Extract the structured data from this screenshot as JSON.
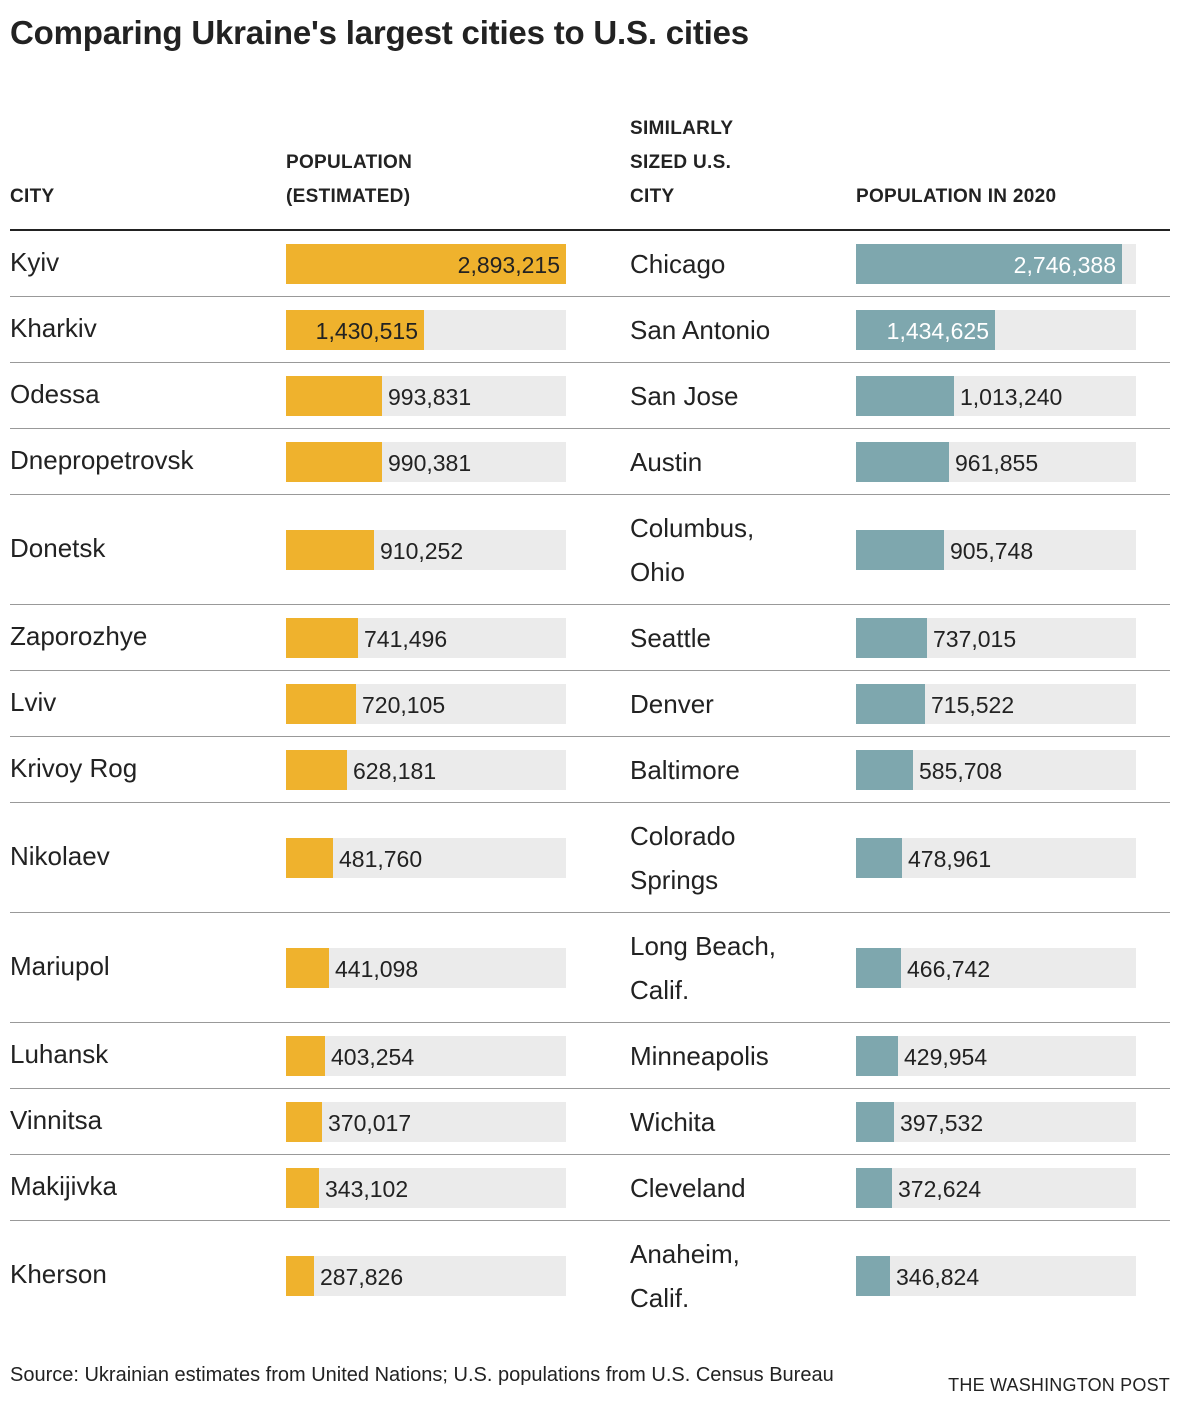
{
  "title": "Comparing Ukraine's largest cities to U.S. cities",
  "headers": {
    "city": "CITY",
    "population_estimated": [
      "POPULATION",
      "(ESTIMATED)"
    ],
    "similar_city": [
      "SIMILARLY",
      "SIZED U.S.",
      "CITY"
    ],
    "population_2020": "POPULATION IN 2020"
  },
  "colors": {
    "ukraine_bar": "#efb22d",
    "us_bar": "#7ea7ae",
    "track": "#ebebeb"
  },
  "chart_data": {
    "type": "table",
    "title": "Comparing Ukraine's largest cities to U.S. cities",
    "columns": [
      "CITY",
      "POPULATION (ESTIMATED)",
      "SIMILARLY SIZED U.S. CITY",
      "POPULATION IN 2020"
    ],
    "scale_max": 2893215,
    "rows": [
      {
        "city": "Kyiv",
        "population": 2893215,
        "population_label": "2,893,215",
        "us_city": [
          "Chicago"
        ],
        "us_population": 2746388,
        "us_population_label": "2,746,388"
      },
      {
        "city": "Kharkiv",
        "population": 1430515,
        "population_label": "1,430,515",
        "us_city": [
          "San Antonio"
        ],
        "us_population": 1434625,
        "us_population_label": "1,434,625"
      },
      {
        "city": "Odessa",
        "population": 993831,
        "population_label": "993,831",
        "us_city": [
          "San Jose"
        ],
        "us_population": 1013240,
        "us_population_label": "1,013,240"
      },
      {
        "city": "Dnepropetrovsk",
        "population": 990381,
        "population_label": "990,381",
        "us_city": [
          "Austin"
        ],
        "us_population": 961855,
        "us_population_label": "961,855"
      },
      {
        "city": "Donetsk",
        "population": 910252,
        "population_label": "910,252",
        "us_city": [
          "Columbus,",
          "Ohio"
        ],
        "us_population": 905748,
        "us_population_label": "905,748"
      },
      {
        "city": "Zaporozhye",
        "population": 741496,
        "population_label": "741,496",
        "us_city": [
          "Seattle"
        ],
        "us_population": 737015,
        "us_population_label": "737,015"
      },
      {
        "city": "Lviv",
        "population": 720105,
        "population_label": "720,105",
        "us_city": [
          "Denver"
        ],
        "us_population": 715522,
        "us_population_label": "715,522"
      },
      {
        "city": "Krivoy Rog",
        "population": 628181,
        "population_label": "628,181",
        "us_city": [
          "Baltimore"
        ],
        "us_population": 585708,
        "us_population_label": "585,708"
      },
      {
        "city": "Nikolaev",
        "population": 481760,
        "population_label": "481,760",
        "us_city": [
          "Colorado",
          "Springs"
        ],
        "us_population": 478961,
        "us_population_label": "478,961"
      },
      {
        "city": "Mariupol",
        "population": 441098,
        "population_label": "441,098",
        "us_city": [
          "Long Beach,",
          "Calif."
        ],
        "us_population": 466742,
        "us_population_label": "466,742"
      },
      {
        "city": "Luhansk",
        "population": 403254,
        "population_label": "403,254",
        "us_city": [
          "Minneapolis"
        ],
        "us_population": 429954,
        "us_population_label": "429,954"
      },
      {
        "city": "Vinnitsa",
        "population": 370017,
        "population_label": "370,017",
        "us_city": [
          "Wichita"
        ],
        "us_population": 397532,
        "us_population_label": "397,532"
      },
      {
        "city": "Makijivka",
        "population": 343102,
        "population_label": "343,102",
        "us_city": [
          "Cleveland"
        ],
        "us_population": 372624,
        "us_population_label": "372,624"
      },
      {
        "city": "Kherson",
        "population": 287826,
        "population_label": "287,826",
        "us_city": [
          "Anaheim,",
          "Calif."
        ],
        "us_population": 346824,
        "us_population_label": "346,824"
      }
    ]
  },
  "footer": {
    "source": "Source: Ukrainian estimates from United Nations; U.S. populations from U.S. Census Bureau",
    "credit": "THE WASHINGTON POST"
  }
}
